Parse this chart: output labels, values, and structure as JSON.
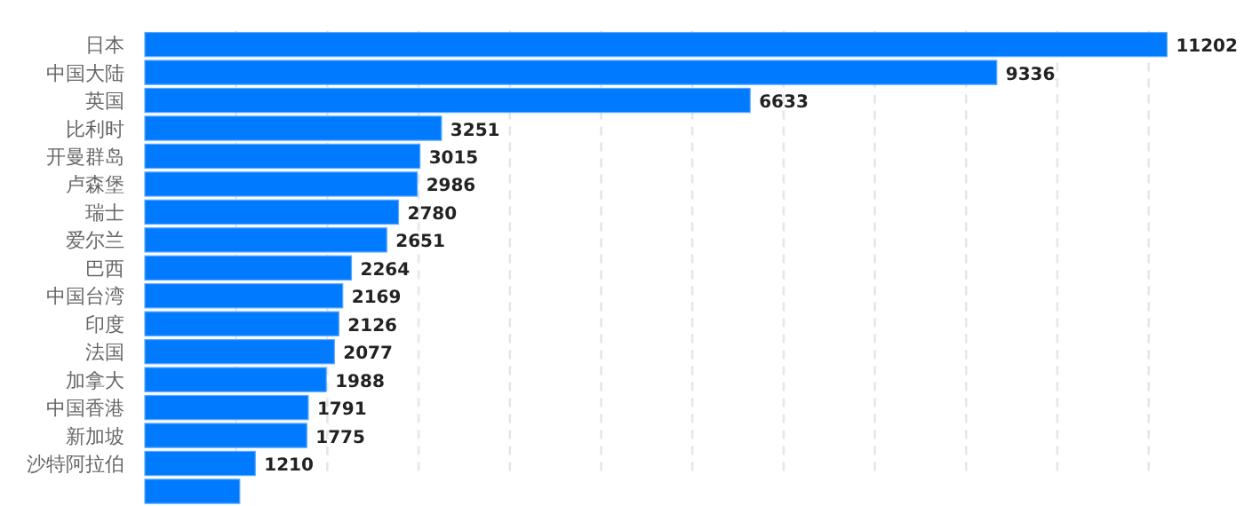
{
  "chart_data": {
    "type": "bar",
    "orientation": "horizontal",
    "categories": [
      "日本",
      "中国大陆",
      "英国",
      "比利时",
      "开曼群岛",
      "卢森堡",
      "瑞士",
      "爱尔兰",
      "巴西",
      "中国台湾",
      "印度",
      "法国",
      "加拿大",
      "中国香港",
      "新加坡",
      "沙特阿拉伯",
      null
    ],
    "values": [
      11202,
      9336,
      6633,
      3251,
      3015,
      2986,
      2780,
      2651,
      2264,
      2169,
      2126,
      2077,
      1988,
      1791,
      1775,
      1210,
      1040
    ],
    "value_labels": [
      "11202",
      "9336",
      "6633",
      "3251",
      "3015",
      "2986",
      "2780",
      "2651",
      "2264",
      "2169",
      "2126",
      "2077",
      "1988",
      "1791",
      "1775",
      "1210",
      null
    ],
    "color": "#007bff",
    "xticks": [
      {
        "value": 1000,
        "label": null
      },
      {
        "value": 2000,
        "label": null
      },
      {
        "value": 3000,
        "label": null
      },
      {
        "value": 4000,
        "label": null
      },
      {
        "value": 5000,
        "label": null
      },
      {
        "value": 6000,
        "label": null
      },
      {
        "value": 7000,
        "label": null
      },
      {
        "value": 8000,
        "label": null
      },
      {
        "value": 9000,
        "label": null
      },
      {
        "value": 10000,
        "label": null
      },
      {
        "value": 11000,
        "label": null
      }
    ],
    "grid": "x",
    "tick_labels": "y"
  }
}
